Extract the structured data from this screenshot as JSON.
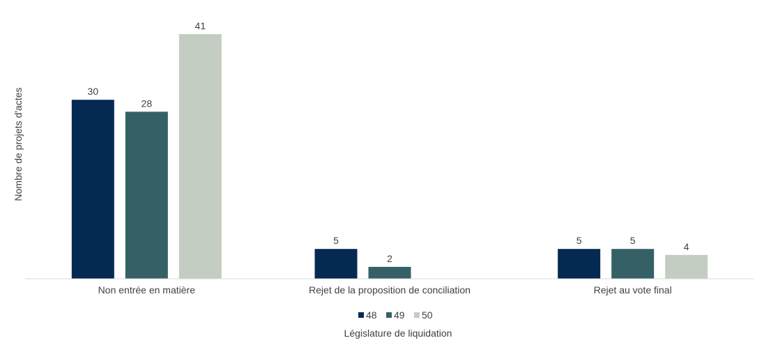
{
  "chart_data": {
    "type": "bar",
    "categories": [
      "Non entrée en matière",
      "Rejet de la proposition de conciliation",
      "Rejet au vote final"
    ],
    "series": [
      {
        "name": "48",
        "color": "#052a52",
        "values": [
          30,
          5,
          5
        ]
      },
      {
        "name": "49",
        "color": "#356166",
        "values": [
          28,
          2,
          5
        ]
      },
      {
        "name": "50",
        "color": "#c3cdc1",
        "values": [
          41,
          0,
          4
        ]
      }
    ],
    "ylabel": "Nombre de projets d'actes",
    "xlabel": "Législature de liquidation",
    "ylim": [
      0,
      41
    ],
    "grid": false,
    "legend_position": "bottom"
  }
}
